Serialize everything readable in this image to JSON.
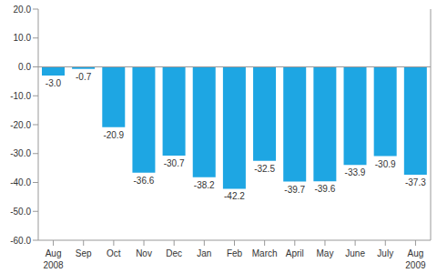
{
  "chart_data": {
    "type": "bar",
    "categories": [
      "Aug\n2008",
      "Sep",
      "Oct",
      "Nov",
      "Dec",
      "Jan",
      "Feb",
      "March",
      "April",
      "May",
      "June",
      "July",
      "Aug\n2009"
    ],
    "values": [
      -3.0,
      -0.7,
      -20.9,
      -36.6,
      -30.7,
      -38.2,
      -42.2,
      -32.5,
      -39.7,
      -39.6,
      -33.9,
      -30.9,
      -37.3
    ],
    "value_labels": [
      "-3.0",
      "-0.7",
      "-20.9",
      "-36.6",
      "-30.7",
      "-38.2",
      "-42.2",
      "-32.5",
      "-39.7",
      "-39.6",
      "-33.9",
      "-30.9",
      "-37.3"
    ],
    "color": "#1ea6e3",
    "ylim": [
      -60,
      20
    ],
    "yticks": [
      {
        "value": -60,
        "label": "-60.0"
      },
      {
        "value": -50,
        "label": "-50.0"
      },
      {
        "value": -40,
        "label": "-40.0"
      },
      {
        "value": -30,
        "label": "-30.0"
      },
      {
        "value": -20,
        "label": "-20.0"
      },
      {
        "value": -10,
        "label": "-10.0"
      },
      {
        "value": 0,
        "label": "0.0"
      },
      {
        "value": 10,
        "label": "10.0"
      },
      {
        "value": 20,
        "label": "20.0"
      }
    ],
    "grid": false,
    "data_labels": true
  }
}
